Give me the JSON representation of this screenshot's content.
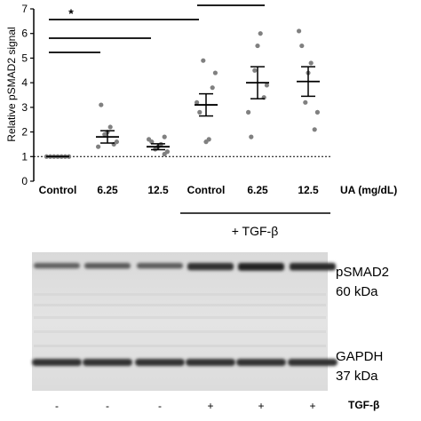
{
  "chart_data": {
    "type": "scatter",
    "ylabel": "Relative pSMAD2 signal",
    "ylim": [
      0,
      7
    ],
    "yticks": [
      0,
      1,
      2,
      3,
      4,
      5,
      6,
      7
    ],
    "baseline": 1,
    "categories": [
      "Control",
      "6.25",
      "12.5",
      "Control",
      "6.25",
      "12.5"
    ],
    "x_unit_label": "UA (mg/dL)",
    "group_label": "+ TGF-β",
    "significance_marker": "*",
    "comparison_bars": [
      {
        "from": 0,
        "to": 3
      },
      {
        "from": 0,
        "to": 2
      },
      {
        "from": 0,
        "to": 1
      },
      {
        "from": 3,
        "to": 4
      }
    ],
    "groups": [
      {
        "points": [
          1.0,
          1.0,
          1.0,
          1.0,
          1.0,
          1.0,
          1.0
        ],
        "mean": 1.0,
        "sem": 0.0
      },
      {
        "points": [
          3.1,
          2.2,
          2.0,
          1.9,
          1.6,
          1.5,
          1.4
        ],
        "mean": 1.8,
        "sem": 0.25
      },
      {
        "points": [
          1.8,
          1.7,
          1.6,
          1.5,
          1.4,
          1.3,
          1.2,
          1.1
        ],
        "mean": 1.4,
        "sem": 0.12
      },
      {
        "points": [
          4.9,
          4.4,
          3.8,
          3.2,
          2.8,
          1.7,
          1.6
        ],
        "mean": 3.1,
        "sem": 0.45
      },
      {
        "points": [
          6.0,
          5.5,
          4.5,
          3.9,
          3.4,
          2.8,
          1.8
        ],
        "mean": 4.0,
        "sem": 0.65
      },
      {
        "points": [
          6.1,
          5.5,
          4.8,
          4.4,
          3.2,
          2.8,
          2.1
        ],
        "mean": 4.05,
        "sem": 0.6
      }
    ],
    "colors": {
      "points": "#808080",
      "lines": "#000000"
    }
  },
  "blot": {
    "labels": [
      {
        "line1": "pSMAD2",
        "line2": "60 kDa"
      },
      {
        "line1": "GAPDH",
        "line2": "37 kDa"
      }
    ],
    "lane_marks": [
      "-",
      "-",
      "-",
      "+",
      "+",
      "+"
    ],
    "lane_label": "TGF-β",
    "band1_intensity": [
      0.45,
      0.5,
      0.48,
      0.85,
      0.95,
      0.9
    ],
    "band2_intensity": [
      0.9,
      0.9,
      0.9,
      0.9,
      0.9,
      0.9
    ]
  }
}
